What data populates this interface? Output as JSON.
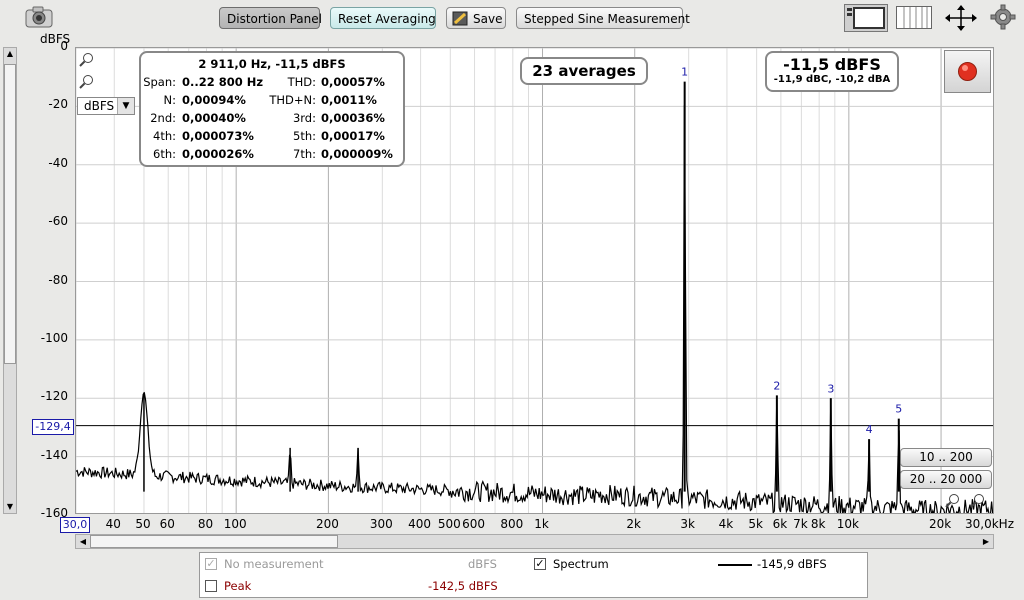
{
  "toolbar": {
    "distortion_panel": "Distortion Panel",
    "reset_averaging": "Reset Averaging",
    "save": "Save",
    "stepped_sine": "Stepped Sine Measurement"
  },
  "axis": {
    "y_unit": "dBFS",
    "y_ticks": [
      "0",
      "-20",
      "-40",
      "-60",
      "-80",
      "-100",
      "-120",
      "-140",
      "-160"
    ],
    "x_ticks": [
      {
        "label": "40",
        "f": 40
      },
      {
        "label": "50",
        "f": 50
      },
      {
        "label": "60",
        "f": 60
      },
      {
        "label": "80",
        "f": 80
      },
      {
        "label": "100",
        "f": 100
      },
      {
        "label": "200",
        "f": 200
      },
      {
        "label": "300",
        "f": 300
      },
      {
        "label": "400",
        "f": 400
      },
      {
        "label": "500",
        "f": 500
      },
      {
        "label": "600",
        "f": 600
      },
      {
        "label": "800",
        "f": 800
      },
      {
        "label": "1k",
        "f": 1000
      },
      {
        "label": "2k",
        "f": 2000
      },
      {
        "label": "3k",
        "f": 3000
      },
      {
        "label": "4k",
        "f": 4000
      },
      {
        "label": "5k",
        "f": 5000
      },
      {
        "label": "6k",
        "f": 6000
      },
      {
        "label": "7k",
        "f": 7000
      },
      {
        "label": "8k",
        "f": 8000
      },
      {
        "label": "10k",
        "f": 10000
      },
      {
        "label": "20k",
        "f": 20000
      }
    ],
    "x_start": "30,0",
    "x_end": "30,0kHz",
    "cursor_value": "-129,4",
    "unit_select": "dBFS"
  },
  "stats": {
    "header": "2 911,0 Hz, -11,5 dBFS",
    "span_label": "Span:",
    "span_value": "0..22 800 Hz",
    "thd_label": "THD:",
    "thd_value": "0,00057%",
    "n_label": "N:",
    "n_value": "0,00094%",
    "thdn_label": "THD+N:",
    "thdn_value": "0,0011%",
    "h2_label": "2nd:",
    "h2_value": "0,00040%",
    "h3_label": "3rd:",
    "h3_value": "0,00036%",
    "h4_label": "4th:",
    "h4_value": "0,000073%",
    "h5_label": "5th:",
    "h5_value": "0,00017%",
    "h6_label": "6th:",
    "h6_value": "0,000026%",
    "h7_label": "7th:",
    "h7_value": "0,000009%"
  },
  "averages": "23 averages",
  "level": {
    "main": "-11,5 dBFS",
    "sub": "-11,9 dBC, -10,2 dBA"
  },
  "range_buttons": {
    "r1": "10 .. 200",
    "r2": "20 .. 20 000"
  },
  "legend": {
    "no_measurement": "No measurement",
    "no_measurement_unit": "dBFS",
    "spectrum": "Spectrum",
    "spectrum_value": "-145,9 dBFS",
    "peak": "Peak",
    "peak_value": "-142,5 dBFS"
  },
  "chart_data": {
    "type": "line",
    "x_scale": "log",
    "xlim": [
      30,
      30000
    ],
    "ylim": [
      -160,
      0
    ],
    "ylabel": "dBFS",
    "grid": true,
    "series": [
      {
        "peaks": [
          {
            "x": 50,
            "y": -118
          },
          {
            "x": 150,
            "y": -137
          },
          {
            "x": 250,
            "y": -137
          },
          {
            "x": 2911,
            "y": -11.5,
            "label": "1"
          },
          {
            "x": 5822,
            "y": -119,
            "label": "2"
          },
          {
            "x": 8733,
            "y": -120,
            "label": "3"
          },
          {
            "x": 11644,
            "y": -134,
            "label": "4"
          },
          {
            "x": 14555,
            "y": -127,
            "label": "5"
          }
        ],
        "noise_floor": -152
      }
    ]
  },
  "colors": {
    "accent_blue": "#1a1aa8",
    "peak_red": "#8b0000",
    "record_red": "#e03020"
  }
}
